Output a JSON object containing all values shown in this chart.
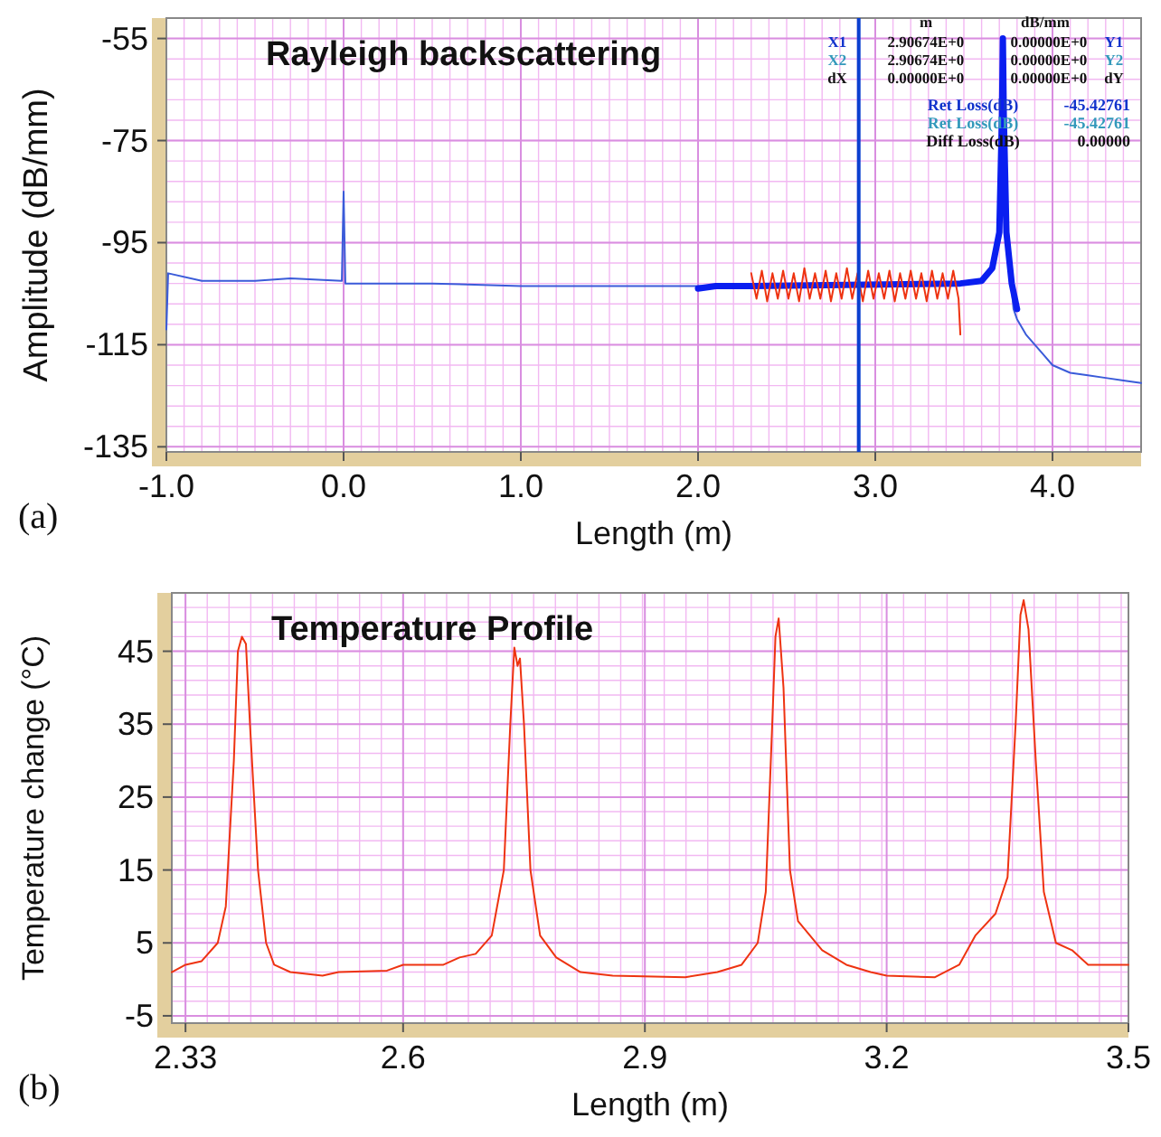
{
  "chart_data": [
    {
      "type": "line",
      "title": "Rayleigh backscattering",
      "xlabel": "Length (m)",
      "ylabel": "Amplitude (dB/mm)",
      "xlim": [
        -1.0,
        4.5
      ],
      "xticks": [
        {
          "value": -1,
          "label": "-1.0"
        },
        {
          "value": 0,
          "label": "0.0"
        },
        {
          "value": 1,
          "label": "1.0"
        },
        {
          "value": 2,
          "label": "2.0"
        },
        {
          "value": 3,
          "label": "3.0"
        },
        {
          "value": 4,
          "label": "4.0"
        }
      ],
      "ylim": [
        -136,
        -51
      ],
      "yticks": [
        -55,
        -75,
        -95,
        -115,
        -135
      ],
      "grid": true,
      "line_style": "solid",
      "ref_lines": [
        {
          "axis": "x",
          "value": 2.90674,
          "color": "#0a3fd0"
        }
      ],
      "annotations": [
        "m",
        "dB/mm",
        "X1",
        "2.90674E+0",
        "0.00000E+0",
        "Y1",
        "X2",
        "2.90674E+0",
        "0.00000E+0",
        "Y2",
        "dX",
        "0.00000E+0",
        "0.00000E+0",
        "dY",
        "Ret Loss(dB)",
        "-45.42761",
        "Ret Loss(dB)",
        "-45.42761",
        "Diff Loss(dB)",
        "0.00000",
        "(a)"
      ],
      "series": [
        {
          "color": "#3a5bd9",
          "x": [
            -1.0,
            -0.99,
            -0.8,
            -0.5,
            -0.3,
            -0.01,
            0.0,
            0.005,
            0.01,
            0.5,
            1.0,
            1.5,
            2.0,
            2.5,
            3.0,
            3.5,
            3.6,
            3.66,
            3.7,
            3.72,
            3.74,
            3.78,
            3.8,
            3.85,
            3.9,
            3.95,
            4.0,
            4.1,
            4.2,
            4.3,
            4.4,
            4.5
          ],
          "values": [
            -112,
            -101,
            -102.5,
            -102.5,
            -102,
            -102.5,
            -85,
            -94,
            -103,
            -103,
            -103.5,
            -103.5,
            -103.5,
            -103.5,
            -103,
            -103,
            -102.5,
            -100,
            -93,
            -55,
            -93,
            -108,
            -110,
            -113,
            -115,
            -117,
            -119,
            -120.5,
            -121,
            -121.5,
            -122,
            -122.5
          ]
        },
        {
          "color": "#0a1ef0",
          "x": [
            2.0,
            2.1,
            2.3,
            3.48,
            3.6,
            3.66,
            3.7,
            3.715,
            3.72,
            3.725,
            3.74,
            3.77,
            3.8
          ],
          "values": [
            -104,
            -103.5,
            -103.5,
            -103,
            -102.5,
            -100,
            -93,
            -70,
            -55,
            -70,
            -93,
            -103,
            -108
          ]
        },
        {
          "color": "#ee3311",
          "x": [
            2.3,
            2.33,
            2.36,
            2.39,
            2.42,
            2.45,
            2.48,
            2.51,
            2.54,
            2.57,
            2.6,
            2.63,
            2.66,
            2.69,
            2.72,
            2.75,
            2.78,
            2.81,
            2.84,
            2.87,
            2.9,
            2.93,
            2.96,
            2.99,
            3.02,
            3.05,
            3.08,
            3.11,
            3.14,
            3.17,
            3.2,
            3.23,
            3.26,
            3.29,
            3.32,
            3.35,
            3.38,
            3.41,
            3.44,
            3.47,
            3.48
          ],
          "values": [
            -101,
            -106,
            -100.5,
            -106.5,
            -101,
            -106,
            -100.5,
            -106,
            -101,
            -106.5,
            -100,
            -106,
            -101,
            -106,
            -100.5,
            -106.5,
            -101,
            -106,
            -100,
            -106,
            -101,
            -106.5,
            -100.5,
            -106,
            -101,
            -106,
            -100.5,
            -106.5,
            -101,
            -106,
            -100.5,
            -106,
            -101,
            -106.5,
            -100.5,
            -106,
            -101,
            -106,
            -100.5,
            -106,
            -113
          ]
        }
      ]
    },
    {
      "type": "line",
      "title": "Temperature Profile",
      "xlabel": "Length (m)",
      "ylabel": "Temperature change (°C)",
      "xlim": [
        2.313,
        3.5
      ],
      "xticks": [
        2.33,
        2.6,
        2.9,
        3.2,
        3.5
      ],
      "ylim": [
        -6,
        53
      ],
      "yticks": [
        -5,
        5,
        15,
        25,
        35,
        45
      ],
      "grid": true,
      "line_style": "solid",
      "annotations": [
        "(b)"
      ],
      "series": [
        {
          "color": "#ee3311",
          "x": [
            2.313,
            2.33,
            2.35,
            2.37,
            2.38,
            2.39,
            2.395,
            2.4,
            2.405,
            2.41,
            2.42,
            2.43,
            2.44,
            2.46,
            2.5,
            2.52,
            2.58,
            2.6,
            2.65,
            2.67,
            2.69,
            2.71,
            2.725,
            2.733,
            2.738,
            2.742,
            2.745,
            2.75,
            2.758,
            2.77,
            2.79,
            2.82,
            2.86,
            2.95,
            2.99,
            3.02,
            3.04,
            3.05,
            3.058,
            3.062,
            3.066,
            3.072,
            3.08,
            3.09,
            3.12,
            3.15,
            3.18,
            3.2,
            3.26,
            3.29,
            3.31,
            3.335,
            3.35,
            3.36,
            3.366,
            3.37,
            3.376,
            3.385,
            3.395,
            3.41,
            3.43,
            3.45,
            3.47,
            3.5
          ],
          "values": [
            1,
            2,
            2.5,
            5,
            10,
            30,
            45,
            47,
            46,
            35,
            15,
            5,
            2,
            1,
            0.5,
            1,
            1.2,
            2,
            2,
            3,
            3.5,
            6,
            15,
            35,
            45.5,
            43,
            44,
            35,
            15,
            6,
            3,
            1,
            0.5,
            0.3,
            1,
            2,
            5,
            12,
            35,
            47,
            49.5,
            40,
            15,
            8,
            4,
            2,
            1,
            0.5,
            0.3,
            2,
            6,
            9,
            14,
            35,
            50,
            52,
            48,
            30,
            12,
            5,
            4,
            2,
            2,
            2
          ]
        }
      ]
    }
  ]
}
